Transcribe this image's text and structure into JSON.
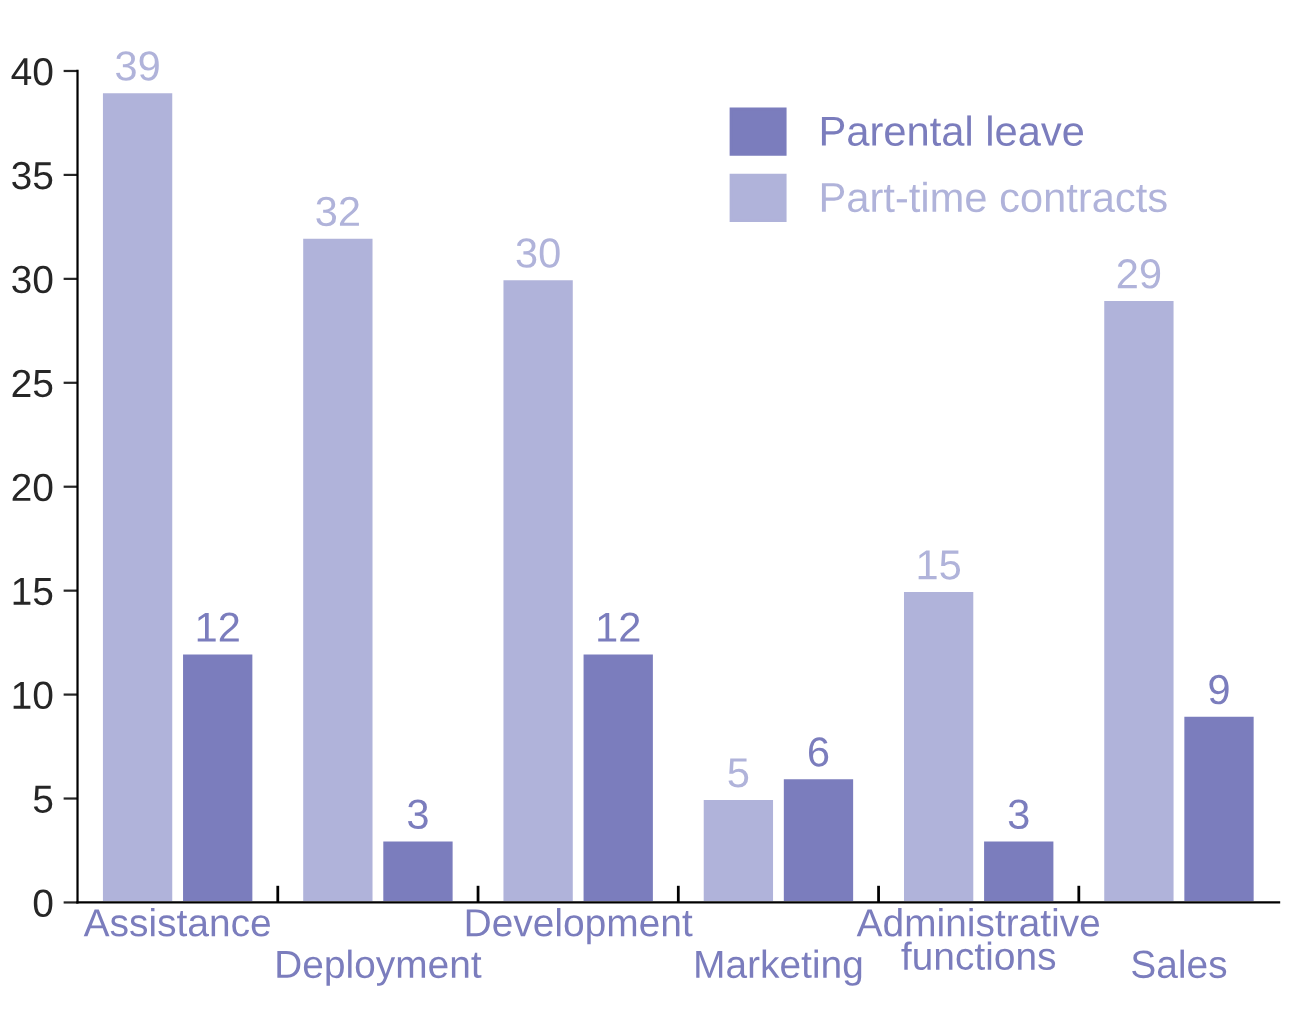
{
  "chart_data": {
    "type": "bar",
    "categories": [
      "Assistance",
      "Deployment",
      "Development",
      "Marketing",
      "Administrative\nfunctions",
      "Sales"
    ],
    "series": [
      {
        "name": "Parental leave",
        "color": "#7b7dbd",
        "values": [
          12,
          3,
          12,
          6,
          3,
          9
        ]
      },
      {
        "name": "Part-time contracts",
        "color": "#b0b3da",
        "values": [
          39,
          32,
          30,
          5,
          15,
          29
        ]
      }
    ],
    "ylim": [
      0,
      40
    ],
    "yticks": [
      0,
      5,
      10,
      15,
      20,
      25,
      30,
      35,
      40
    ],
    "data_labels": true,
    "grid": false,
    "legend": "top right"
  }
}
